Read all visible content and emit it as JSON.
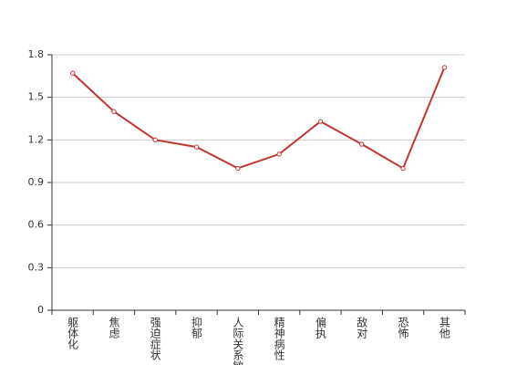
{
  "chart_data": {
    "type": "line",
    "categories": [
      "躯体化",
      "焦虑",
      "强迫症状",
      "抑郁",
      "人际关系敏感",
      "精神病性",
      "偏执",
      "敌对",
      "恐怖",
      "其他"
    ],
    "values": [
      1.67,
      1.4,
      1.2,
      1.15,
      1.0,
      1.1,
      1.33,
      1.17,
      1.0,
      1.71
    ],
    "color": "#c23531",
    "ylim": [
      0,
      1.8
    ],
    "yticks": [
      0,
      0.3,
      0.6,
      0.9,
      1.2,
      1.5,
      1.8
    ],
    "grid": true
  }
}
